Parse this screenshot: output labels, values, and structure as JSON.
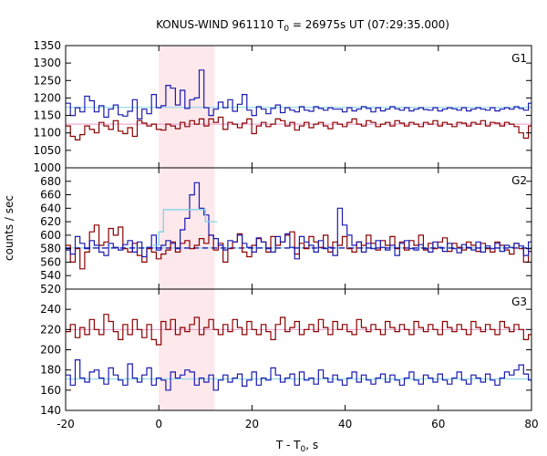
{
  "title": {
    "main": "KONUS-WIND 961110 T",
    "sub": "0",
    "rest": " = 26975s UT (07:29:35.000)"
  },
  "xlabel": {
    "main": "T - T",
    "sub": "0",
    "rest": ", s"
  },
  "ylabel": "counts / sec",
  "colors": {
    "blue": "#1a1ab0",
    "red": "#8b0000",
    "cyan": "#7fd4e6",
    "pink": "#e699c8",
    "shade": "#fde8ec"
  },
  "chart_data": {
    "type": "line",
    "x_range": [
      -20,
      80
    ],
    "x_ticks": [
      "-20",
      "0",
      "20",
      "40",
      "60",
      "80"
    ],
    "bin_start": -20,
    "bin_width": 1.024,
    "shaded_interval": [
      0,
      12
    ],
    "panels": [
      {
        "label": "G1",
        "ylim": [
          1000,
          1350
        ],
        "yticks": [
          "1000",
          "1050",
          "1100",
          "1150",
          "1200",
          "1250",
          "1300",
          "1350"
        ],
        "series": [
          {
            "color": "blue",
            "values": [
              1185,
              1150,
              1172,
              1160,
              1205,
              1192,
              1160,
              1178,
              1145,
              1168,
              1180,
              1152,
              1148,
              1162,
              1195,
              1140,
              1168,
              1155,
              1210,
              1172,
              1178,
              1236,
              1228,
              1180,
              1222,
              1170,
              1195,
              1200,
              1280,
              1172,
              1150,
              1168,
              1188,
              1172,
              1195,
              1162,
              1182,
              1210,
              1165,
              1150,
              1175,
              1168,
              1155,
              1170,
              1180,
              1158,
              1172,
              1165,
              1160,
              1175,
              1165,
              1162,
              1175,
              1170,
              1165,
              1172,
              1168,
              1168,
              1160,
              1172,
              1163,
              1168,
              1175,
              1170,
              1160,
              1172,
              1163,
              1168,
              1175,
              1169,
              1165,
              1172,
              1163,
              1168,
              1172,
              1167,
              1165,
              1172,
              1163,
              1168,
              1172,
              1169,
              1165,
              1172,
              1163,
              1168,
              1172,
              1168,
              1165,
              1172,
              1163,
              1168,
              1172,
              1168,
              1175,
              1170,
              1165,
              1185
            ]
          },
          {
            "color": "red",
            "values": [
              1120,
              1090,
              1080,
              1095,
              1120,
              1110,
              1100,
              1130,
              1120,
              1110,
              1135,
              1105,
              1098,
              1115,
              1090,
              1135,
              1128,
              1120,
              1125,
              1110,
              1108,
              1125,
              1120,
              1112,
              1130,
              1118,
              1135,
              1125,
              1140,
              1120,
              1140,
              1130,
              1145,
              1110,
              1130,
              1125,
              1115,
              1128,
              1140,
              1098,
              1120,
              1130,
              1118,
              1125,
              1140,
              1135,
              1120,
              1130,
              1108,
              1120,
              1130,
              1115,
              1125,
              1130,
              1120,
              1112,
              1130,
              1125,
              1118,
              1130,
              1140,
              1125,
              1120,
              1135,
              1130,
              1118,
              1125,
              1130,
              1120,
              1135,
              1128,
              1120,
              1130,
              1125,
              1118,
              1130,
              1125,
              1135,
              1120,
              1130,
              1125,
              1118,
              1130,
              1128,
              1120,
              1130,
              1125,
              1135,
              1120,
              1130,
              1128,
              1120,
              1130,
              1125,
              1118,
              1100,
              1085,
              1120
            ]
          }
        ],
        "lines": [
          {
            "color": "cyan",
            "value": 1173
          },
          {
            "color": "pink",
            "value": 1125
          }
        ]
      },
      {
        "label": "G2",
        "ylim": [
          520,
          700
        ],
        "yticks": [
          "520",
          "540",
          "560",
          "580",
          "600",
          "620",
          "640",
          "660",
          "680"
        ],
        "series": [
          {
            "color": "blue",
            "values": [
              578,
              572,
              598,
              588,
              580,
              592,
              585,
              575,
              570,
              588,
              582,
              578,
              586,
              592,
              575,
              590,
              568,
              582,
              600,
              578,
              585,
              592,
              588,
              580,
              608,
              625,
              660,
              678,
              640,
              630,
              600,
              595,
              585,
              578,
              592,
              590,
              600,
              588,
              582,
              575,
              596,
              590,
              580,
              575,
              598,
              590,
              602,
              582,
              565,
              598,
              590,
              585,
              575,
              592,
              580,
              582,
              570,
              640,
              615,
              600,
              585,
              590,
              575,
              588,
              580,
              592,
              582,
              578,
              585,
              570,
              588,
              592,
              580,
              578,
              586,
              580,
              575,
              590,
              582,
              576,
              588,
              580,
              574,
              586,
              582,
              578,
              590,
              575,
              584,
              580,
              588,
              576,
              585,
              582,
              588,
              584,
              570,
              590
            ]
          },
          {
            "color": "red",
            "values": [
              585,
              560,
              580,
              550,
              575,
              605,
              615,
              585,
              590,
              610,
              600,
              612,
              580,
              575,
              588,
              570,
              560,
              580,
              575,
              565,
              572,
              578,
              590,
              575,
              588,
              592,
              580,
              585,
              595,
              588,
              600,
              578,
              588,
              560,
              580,
              590,
              602,
              575,
              568,
              585,
              595,
              590,
              575,
              598,
              585,
              590,
              600,
              605,
              572,
              588,
              580,
              598,
              590,
              582,
              600,
              575,
              590,
              585,
              598,
              580,
              575,
              590,
              585,
              600,
              588,
              578,
              592,
              585,
              598,
              580,
              590,
              578,
              592,
              585,
              600,
              578,
              588,
              580,
              590,
              596,
              576,
              588,
              582,
              578,
              590,
              585,
              576,
              588,
              580,
              575,
              590,
              585,
              578,
              572,
              588,
              580,
              560,
              576
            ]
          }
        ],
        "lines": [
          {
            "color": "cyan",
            "value": 581
          }
        ],
        "dashed": [
          {
            "color": "blue",
            "value": 581
          }
        ],
        "steps": [
          {
            "color": "cyan",
            "x": [
              -1.2,
              0,
              1,
              4,
              10,
              12.5
            ],
            "values": [
              585,
              605,
              638,
              638,
              620,
              620
            ]
          }
        ]
      },
      {
        "label": "G3",
        "ylim": [
          140,
          260
        ],
        "yticks": [
          "140",
          "160",
          "180",
          "200",
          "220",
          "240"
        ],
        "series": [
          {
            "color": "blue",
            "values": [
              175,
              165,
              190,
              172,
              168,
              178,
              180,
              172,
              166,
              182,
              175,
              170,
              165,
              186,
              172,
              168,
              175,
              182,
              165,
              172,
              170,
              160,
              178,
              172,
              175,
              180,
              178,
              165,
              172,
              168,
              175,
              160,
              170,
              175,
              168,
              172,
              176,
              164,
              170,
              178,
              165,
              172,
              170,
              182,
              175,
              168,
              172,
              176,
              165,
              178,
              170,
              172,
              166,
              180,
              172,
              168,
              175,
              170,
              165,
              172,
              178,
              168,
              175,
              170,
              166,
              172,
              176,
              168,
              175,
              170,
              165,
              172,
              178,
              170,
              166,
              175,
              172,
              168,
              176,
              170,
              166,
              172,
              178,
              170,
              166,
              175,
              172,
              168,
              176,
              170,
              165,
              172,
              178,
              175,
              180,
              185,
              176,
              170
            ]
          },
          {
            "color": "red",
            "values": [
              218,
              225,
              212,
              222,
              215,
              230,
              220,
              215,
              235,
              228,
              218,
              210,
              225,
              215,
              230,
              220,
              212,
              225,
              210,
              205,
              228,
              220,
              230,
              215,
              222,
              218,
              225,
              232,
              215,
              222,
              230,
              220,
              215,
              225,
              218,
              230,
              222,
              215,
              228,
              220,
              215,
              225,
              218,
              210,
              225,
              232,
              218,
              222,
              228,
              215,
              220,
              225,
              218,
              230,
              222,
              215,
              228,
              220,
              225,
              218,
              215,
              230,
              222,
              218,
              225,
              220,
              215,
              228,
              222,
              218,
              225,
              220,
              215,
              228,
              222,
              218,
              225,
              220,
              215,
              228,
              222,
              218,
              225,
              220,
              215,
              228,
              222,
              218,
              225,
              220,
              215,
              228,
              222,
              218,
              225,
              220,
              210,
              215
            ]
          }
        ],
        "lines": [
          {
            "color": "pink",
            "value": 220
          },
          {
            "color": "cyan",
            "value": 171
          }
        ]
      }
    ]
  }
}
